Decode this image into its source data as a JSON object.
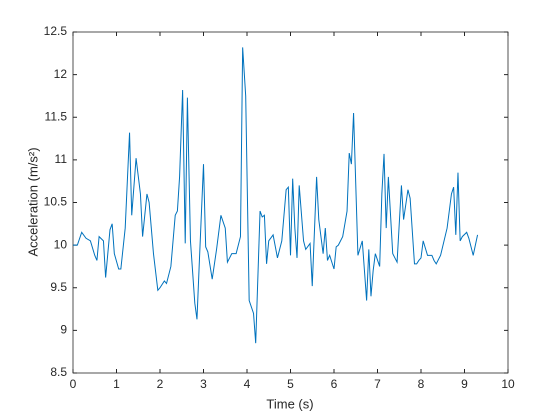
{
  "chart_data": {
    "type": "line",
    "xlabel": "Time (s)",
    "ylabel": "Acceleration (m/s²)",
    "x": [
      0,
      0.1,
      0.2,
      0.3,
      0.4,
      0.5,
      0.55,
      0.6,
      0.7,
      0.75,
      0.85,
      0.9,
      0.95,
      1.05,
      1.1,
      1.2,
      1.3,
      1.35,
      1.45,
      1.55,
      1.6,
      1.7,
      1.75,
      1.85,
      1.95,
      2.0,
      2.1,
      2.15,
      2.25,
      2.35,
      2.4,
      2.45,
      2.52,
      2.58,
      2.63,
      2.7,
      2.8,
      2.85,
      2.9,
      3.0,
      3.05,
      3.1,
      3.2,
      3.3,
      3.4,
      3.5,
      3.55,
      3.65,
      3.75,
      3.85,
      3.9,
      3.97,
      4.05,
      4.15,
      4.2,
      4.3,
      4.35,
      4.4,
      4.45,
      4.5,
      4.6,
      4.7,
      4.8,
      4.9,
      4.95,
      5.0,
      5.05,
      5.1,
      5.15,
      5.2,
      5.3,
      5.35,
      5.45,
      5.5,
      5.6,
      5.65,
      5.75,
      5.8,
      5.85,
      5.9,
      6.0,
      6.05,
      6.1,
      6.2,
      6.3,
      6.35,
      6.4,
      6.45,
      6.55,
      6.65,
      6.75,
      6.8,
      6.85,
      6.9,
      6.95,
      7.05,
      7.1,
      7.15,
      7.2,
      7.25,
      7.35,
      7.45,
      7.55,
      7.6,
      7.7,
      7.75,
      7.85,
      7.9,
      7.95,
      8.0,
      8.05,
      8.15,
      8.25,
      8.3,
      8.35,
      8.45,
      8.6,
      8.7,
      8.75,
      8.8,
      8.85,
      8.9,
      8.95,
      9.05,
      9.1,
      9.2,
      9.3
    ],
    "series": [
      {
        "color": "#0072bd",
        "values": [
          10.0,
          10.0,
          10.15,
          10.08,
          10.05,
          9.88,
          9.82,
          10.1,
          10.05,
          9.62,
          10.18,
          10.25,
          9.9,
          9.72,
          9.72,
          10.2,
          11.32,
          10.35,
          11.02,
          10.6,
          10.1,
          10.6,
          10.5,
          9.9,
          9.47,
          9.5,
          9.58,
          9.55,
          9.75,
          10.35,
          10.4,
          10.8,
          11.82,
          10.02,
          11.73,
          10.05,
          9.32,
          9.13,
          9.75,
          10.95,
          9.98,
          9.92,
          9.6,
          9.95,
          10.35,
          10.2,
          9.8,
          9.9,
          9.9,
          10.1,
          12.32,
          11.75,
          9.35,
          9.2,
          8.85,
          10.4,
          10.33,
          10.35,
          9.78,
          10.05,
          10.12,
          9.85,
          10.05,
          10.65,
          10.68,
          9.88,
          10.78,
          10.2,
          9.85,
          10.7,
          10.05,
          9.95,
          10.02,
          9.52,
          10.8,
          10.3,
          9.9,
          10.2,
          9.82,
          9.88,
          9.72,
          9.98,
          10.0,
          10.1,
          10.4,
          11.08,
          10.95,
          11.55,
          9.88,
          10.05,
          9.35,
          9.95,
          9.4,
          9.7,
          9.9,
          9.75,
          10.6,
          11.07,
          10.2,
          10.8,
          9.9,
          9.8,
          10.7,
          10.3,
          10.65,
          10.55,
          9.78,
          9.78,
          9.82,
          9.85,
          10.05,
          9.88,
          9.88,
          9.82,
          9.78,
          9.88,
          10.2,
          10.6,
          10.68,
          10.12,
          10.85,
          10.05,
          10.1,
          10.15,
          10.08,
          9.88,
          10.12
        ]
      }
    ],
    "xlim": [
      0,
      10
    ],
    "xticks": [
      0,
      1,
      2,
      3,
      4,
      5,
      6,
      7,
      8,
      9,
      10
    ],
    "ylim": [
      8.5,
      12.5
    ],
    "yticks": [
      8.5,
      9,
      9.5,
      10,
      10.5,
      11,
      11.5,
      12,
      12.5
    ],
    "grid": false
  }
}
